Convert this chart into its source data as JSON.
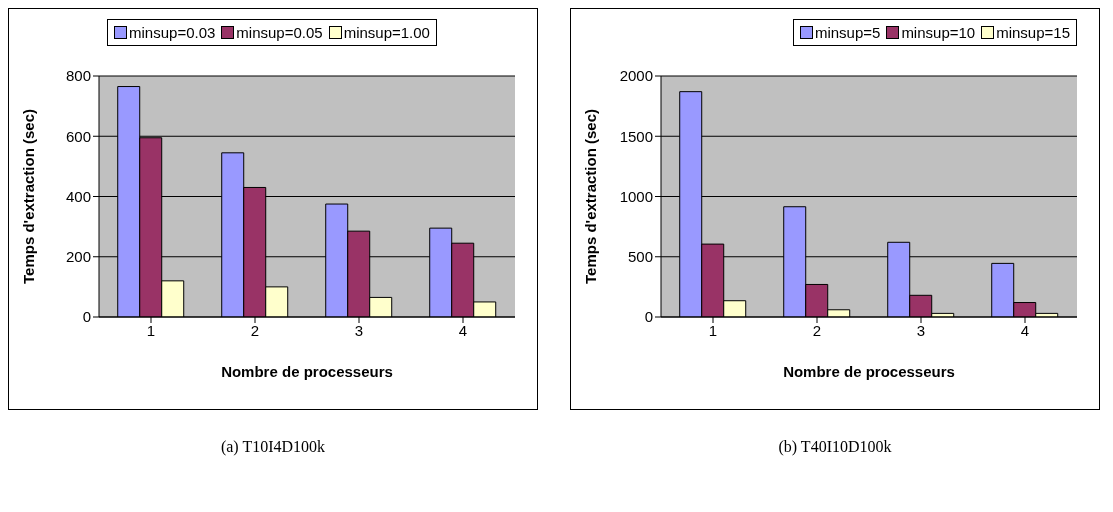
{
  "chart_data": [
    {
      "type": "bar",
      "categories": [
        "1",
        "2",
        "3",
        "4"
      ],
      "xlabel": "Nombre de processeurs",
      "ylabel": "Temps d'extraction (sec)",
      "ylim": [
        0,
        800
      ],
      "yticks": [
        0,
        200,
        400,
        600,
        800
      ],
      "grid": "y",
      "legend": "top",
      "annotations": [
        "(a) T10I4D100k"
      ],
      "series": [
        {
          "name": "minsup=0.03",
          "color": "#9999ff",
          "values": [
            765,
            545,
            375,
            295
          ]
        },
        {
          "name": "minsup=0.05",
          "color": "#993366",
          "values": [
            595,
            430,
            285,
            245
          ]
        },
        {
          "name": "minsup=1.00",
          "color": "#ffffcc",
          "values": [
            120,
            100,
            65,
            50
          ]
        }
      ]
    },
    {
      "type": "bar",
      "categories": [
        "1",
        "2",
        "3",
        "4"
      ],
      "xlabel": "Nombre de processeurs",
      "ylabel": "Temps d'extraction (sec)",
      "ylim": [
        0,
        2000
      ],
      "yticks": [
        0,
        500,
        1000,
        1500,
        2000
      ],
      "grid": "y",
      "legend": "top right",
      "annotations": [
        "(b) T40I10D100k"
      ],
      "series": [
        {
          "name": "minsup=5",
          "color": "#9999ff",
          "values": [
            1870,
            915,
            620,
            445
          ]
        },
        {
          "name": "minsup=10",
          "color": "#993366",
          "values": [
            605,
            270,
            180,
            120
          ]
        },
        {
          "name": "minsup=15",
          "color": "#ffffcc",
          "values": [
            135,
            60,
            30,
            30
          ]
        }
      ]
    }
  ]
}
